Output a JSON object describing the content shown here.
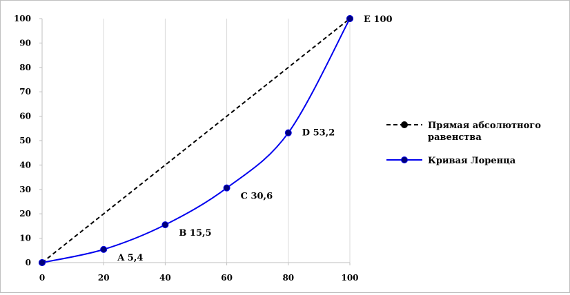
{
  "chart_data": {
    "type": "line",
    "title": "",
    "xlabel": "",
    "ylabel": "",
    "xlim": [
      0,
      100
    ],
    "ylim": [
      0,
      100
    ],
    "x_ticks": [
      "0",
      "20",
      "40",
      "60",
      "80",
      "100"
    ],
    "y_ticks": [
      "0",
      "10",
      "20",
      "30",
      "40",
      "50",
      "60",
      "70",
      "80",
      "90",
      "100"
    ],
    "grid": "vertical",
    "legend_position": "right",
    "series": [
      {
        "name": "Прямая абсолютного равенства",
        "name_lines": [
          "Прямая абсолютного",
          "равенства"
        ],
        "style": "dashed",
        "color": "#000000",
        "marker_color": "#000000",
        "x": [
          0,
          100
        ],
        "y": [
          0,
          100
        ]
      },
      {
        "name": "Кривая Лоренца",
        "style": "solid",
        "color": "#0000ee",
        "marker_color": "#00007a",
        "x": [
          0,
          20,
          40,
          60,
          80,
          100
        ],
        "y": [
          0,
          5.4,
          15.5,
          30.6,
          53.2,
          100
        ]
      }
    ],
    "point_labels": [
      {
        "x": 20,
        "y": 5.4,
        "text": "A  5,4"
      },
      {
        "x": 40,
        "y": 15.5,
        "text": "B  15,5"
      },
      {
        "x": 60,
        "y": 30.6,
        "text": "C  30,6"
      },
      {
        "x": 80,
        "y": 53.2,
        "text": "D  53,2"
      },
      {
        "x": 100,
        "y": 100,
        "text": "E  100"
      }
    ]
  }
}
